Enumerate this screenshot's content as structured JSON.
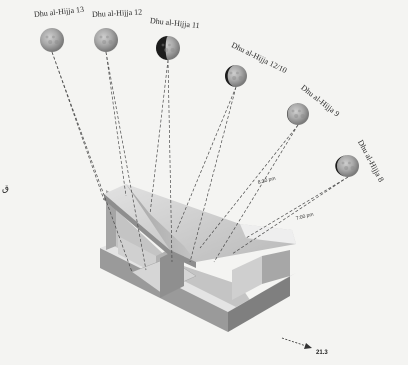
{
  "moons": [
    {
      "label": "Dhu al-Hijja 13",
      "phase": "full"
    },
    {
      "label": "Dhu al-Hijja 12",
      "phase": "full"
    },
    {
      "label": "Dhu al-Hijja 11",
      "phase": "nearly full"
    },
    {
      "label": "Dhu al-Hijja 12/10",
      "phase": "waxing gibbous"
    },
    {
      "label": "Dhu al-Hijja 9",
      "phase": "waxing gibbous"
    },
    {
      "label": "Dhu al-Hijja 8",
      "phase": "waxing gibbous"
    }
  ],
  "time_labels": [
    "8:30 pm",
    "7:00 pm"
  ],
  "left_glyph": "ق",
  "bearing_label": "21.3",
  "notes": [
    "",
    ""
  ],
  "colors": {
    "background": "#f4f4f2",
    "ray_line": "#4a4a4a",
    "wall_top": "#dcdcdc",
    "wall_light": "#c9c9c9",
    "wall_dark": "#8d8d8d",
    "floor": "#bdbdbd"
  }
}
